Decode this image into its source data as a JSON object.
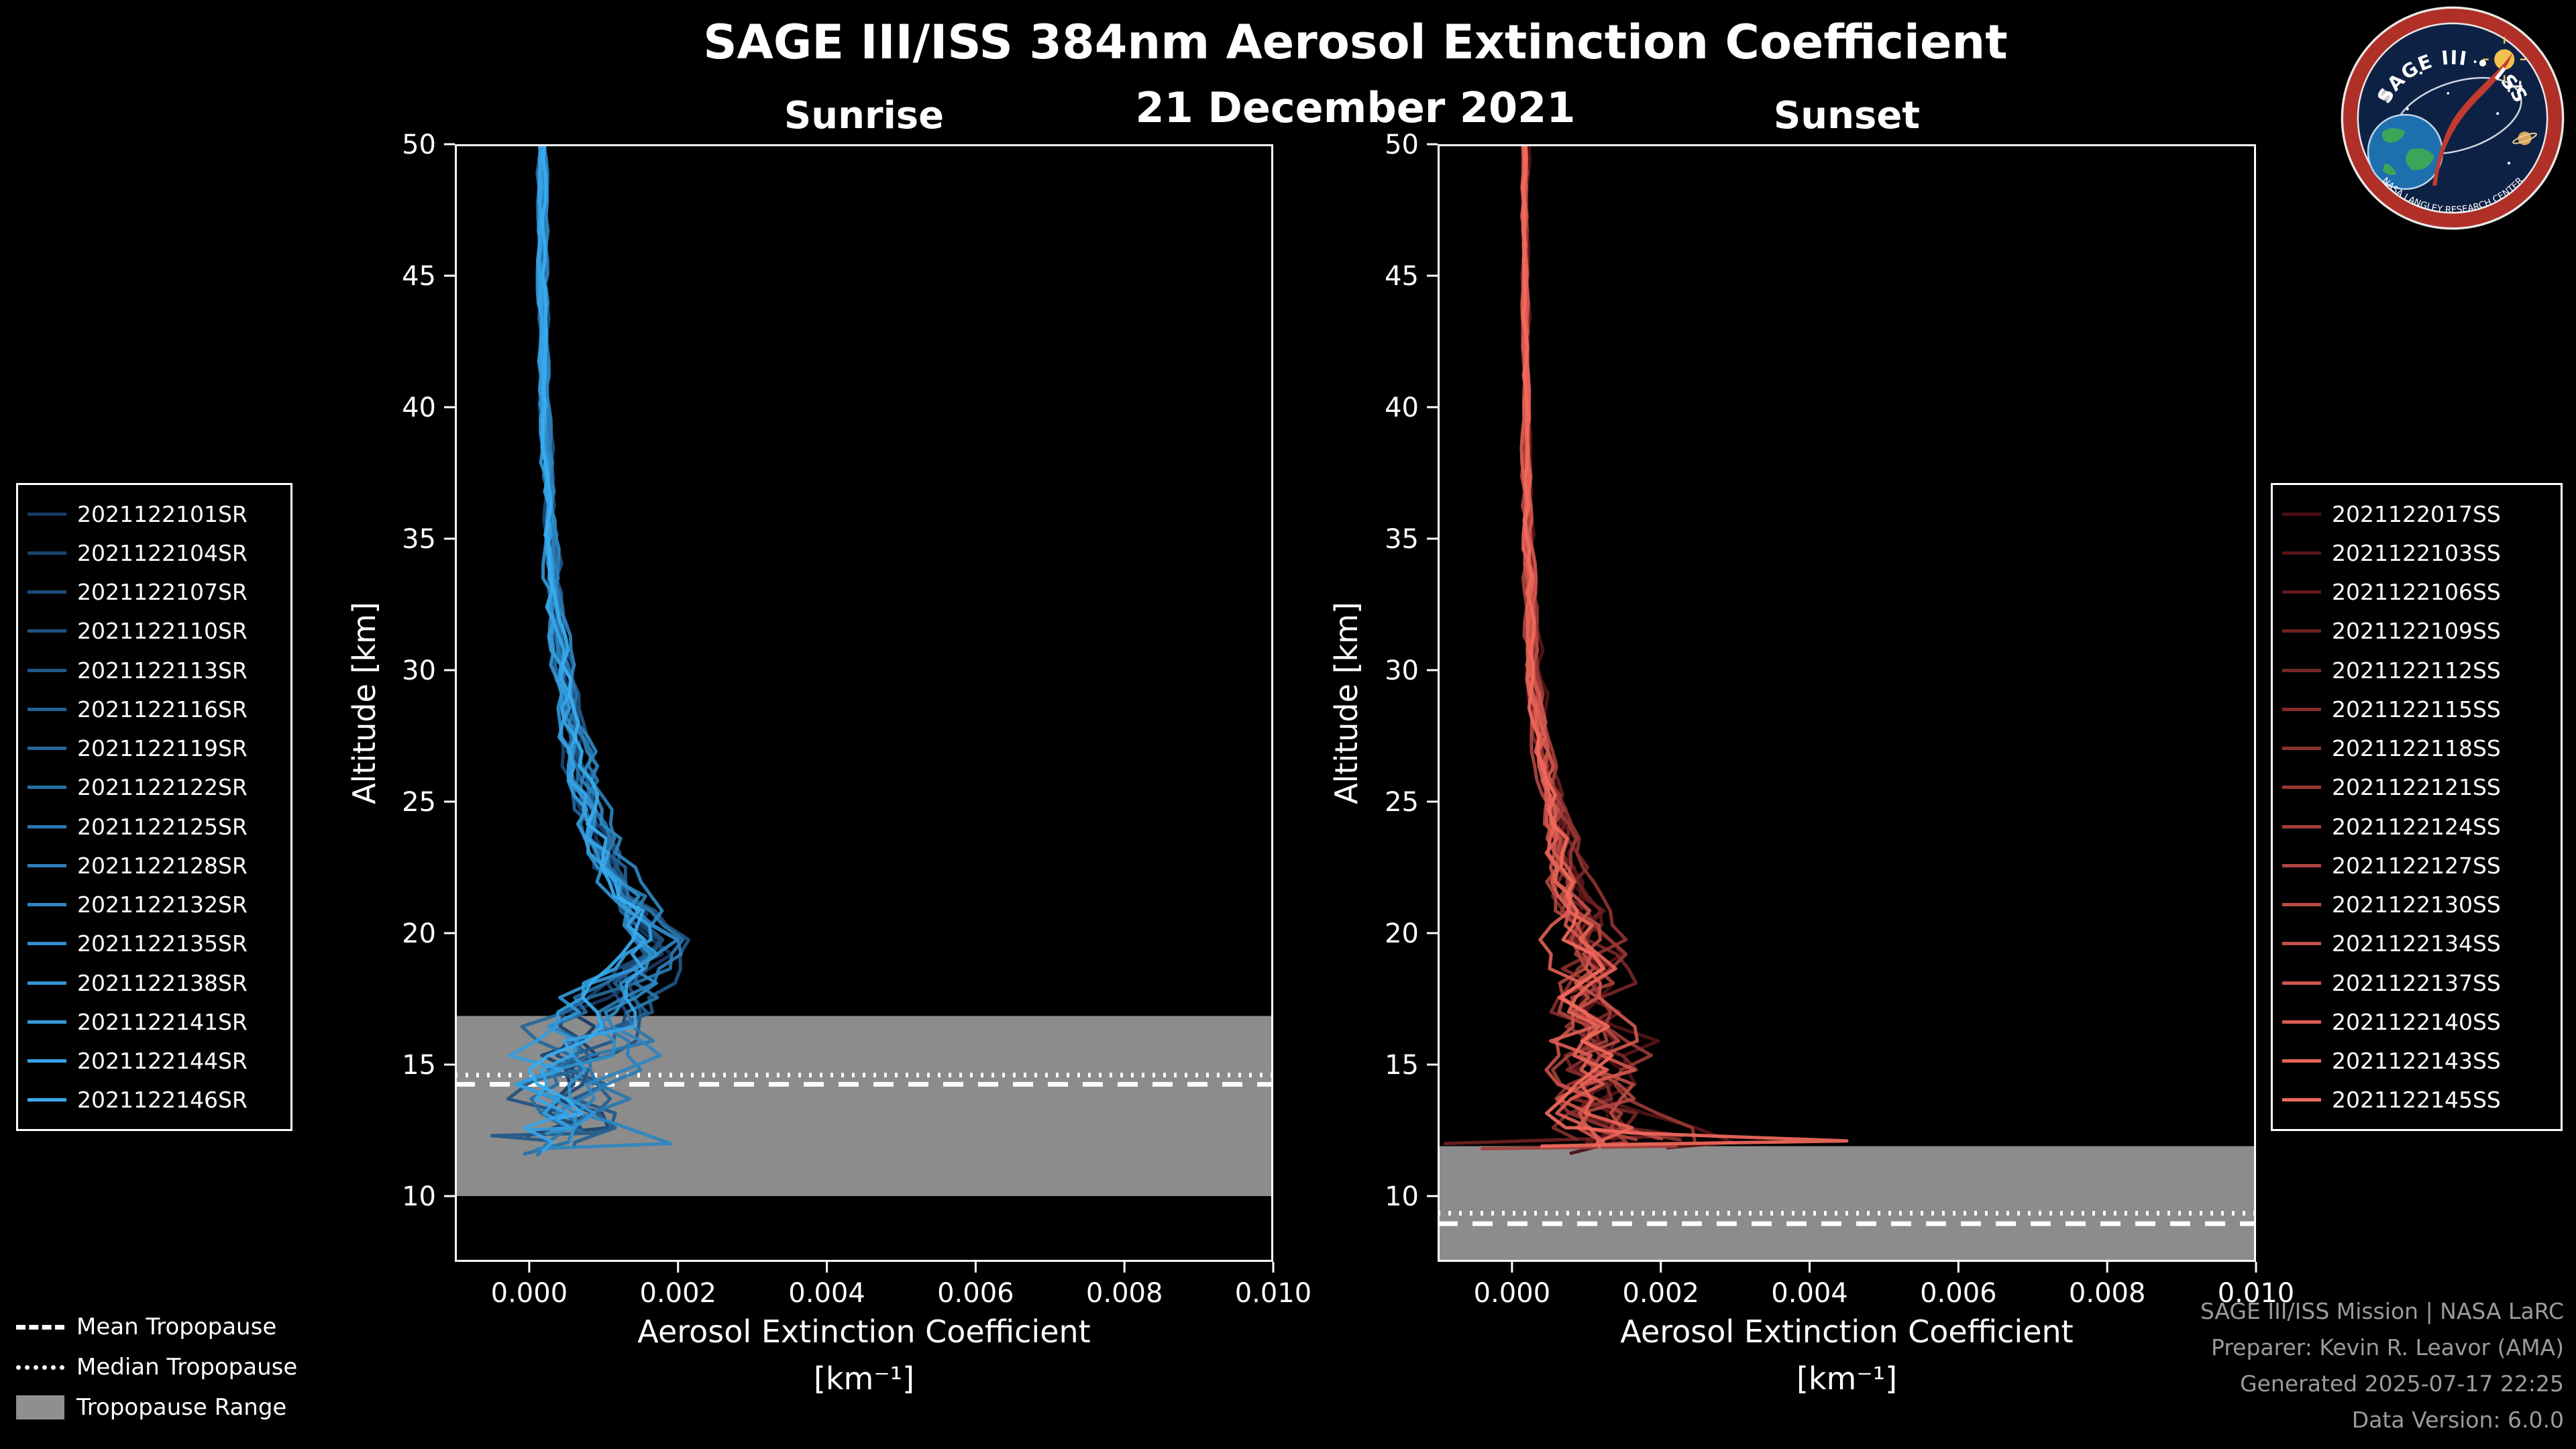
{
  "title": "SAGE III/ISS 384nm Aerosol Extinction Coefficient",
  "subtitle": "21 December 2021",
  "axes_labels": {
    "ylabel": "Altitude [km]",
    "xlabel": "Aerosol Extinction Coefficient",
    "xlabel_units": "[km⁻¹]"
  },
  "bottom_legend": [
    {
      "style": "bl-dashed",
      "label": "Mean Tropopause"
    },
    {
      "style": "bl-dotted",
      "label": "Median Tropopause"
    },
    {
      "style": "bl-patch",
      "label": "Tropopause Range"
    }
  ],
  "credits": [
    "SAGE III/ISS Mission | NASA LaRC",
    "Preparer: Kevin R. Leavor (AMA)",
    "Generated 2025-07-17 22:25",
    "Data Version: 6.0.0"
  ],
  "logo": {
    "arc_text": "SAGE III • ISS",
    "ring_text": "NASA LANGLEY RESEARCH CENTER"
  },
  "colors": {
    "background": "#000000",
    "foreground": "#ffffff",
    "tropopause_band": "#949494",
    "credits_text": "#9b9b9b"
  },
  "chart_data": {
    "type": "line",
    "title": "SAGE III/ISS 384nm Aerosol Extinction Coefficient",
    "subtitle": "21 December 2021",
    "xlabel": "Aerosol Extinction Coefficient [km⁻¹]",
    "ylabel": "Altitude [km]",
    "axes": {
      "xlim": [
        -0.001,
        0.01
      ],
      "ylim": [
        7.5,
        50
      ],
      "xticks": [
        0.0,
        0.002,
        0.004,
        0.006,
        0.008,
        0.01
      ],
      "xtick_labels": [
        "0.000",
        "0.002",
        "0.004",
        "0.006",
        "0.008",
        "0.010"
      ],
      "yticks": [
        10,
        15,
        20,
        25,
        30,
        35,
        40,
        45,
        50
      ],
      "ytick_labels": [
        "10",
        "15",
        "20",
        "25",
        "30",
        "35",
        "40",
        "45",
        "50"
      ],
      "grid": false
    },
    "panels": [
      {
        "id": "sunrise",
        "title": "Sunrise",
        "legend_position": "outside-left",
        "seed": 11,
        "tropopause": {
          "mean": 14.25,
          "median": 14.6,
          "range": [
            10.0,
            16.85
          ]
        },
        "base_profile": {
          "altitude": [
            50,
            45,
            40,
            35,
            32,
            30,
            28,
            26,
            24,
            22,
            21,
            20,
            19.5,
            19,
            18,
            17,
            16,
            15,
            14,
            13,
            12.5,
            12,
            11.5
          ],
          "extinction": [
            0.00018,
            0.00018,
            0.0002,
            0.00028,
            0.00035,
            0.00045,
            0.00055,
            0.0007,
            0.0009,
            0.0012,
            0.0014,
            0.0016,
            0.0017,
            0.0016,
            0.0013,
            0.001,
            0.0008,
            0.0006,
            0.0005,
            0.0006,
            0.0005,
            0.0003,
            0.0002
          ]
        },
        "noise_profile": {
          "altitude": [
            50,
            40,
            35,
            30,
            25,
            22,
            20,
            18,
            16,
            14,
            12,
            11.5
          ],
          "amplitude": [
            4e-05,
            4e-05,
            6e-05,
            0.0001,
            0.00015,
            0.0002,
            0.00025,
            0.0004,
            0.0006,
            0.0006,
            0.0005,
            0.0004
          ]
        },
        "end_altitude": [
          11.5,
          13.0
        ],
        "tails": [
          {
            "series": 4,
            "points": [
              [
                12.3,
                -0.0005
              ],
              [
                12.1,
                0.0003
              ]
            ]
          },
          {
            "series": 10,
            "points": [
              [
                12.0,
                0.0019
              ],
              [
                11.8,
                0.0001
              ]
            ]
          }
        ],
        "series": [
          {
            "label": "2021122101SR",
            "color": "#173A63"
          },
          {
            "label": "2021122104SR",
            "color": "#19426C"
          },
          {
            "label": "2021122107SR",
            "color": "#1B4976"
          },
          {
            "label": "2021122110SR",
            "color": "#1E517F"
          },
          {
            "label": "2021122113SR",
            "color": "#205889"
          },
          {
            "label": "2021122116SR",
            "color": "#226092"
          },
          {
            "label": "2021122119SR",
            "color": "#24689B"
          },
          {
            "label": "2021122122SR",
            "color": "#266FA5"
          },
          {
            "label": "2021122125SR",
            "color": "#2977AE"
          },
          {
            "label": "2021122128SR",
            "color": "#2B7EB8"
          },
          {
            "label": "2021122132SR",
            "color": "#2D86C1"
          },
          {
            "label": "2021122135SR",
            "color": "#2F8ECA"
          },
          {
            "label": "2021122138SR",
            "color": "#3195D4"
          },
          {
            "label": "2021122141SR",
            "color": "#349DDD"
          },
          {
            "label": "2021122144SR",
            "color": "#36A4E7"
          },
          {
            "label": "2021122146SR",
            "color": "#38ACF0"
          }
        ]
      },
      {
        "id": "sunset",
        "title": "Sunset",
        "legend_position": "outside-right",
        "seed": 77,
        "tropopause": {
          "mean": 8.95,
          "median": 9.35,
          "range": [
            7.5,
            11.9
          ]
        },
        "base_profile": {
          "altitude": [
            50,
            45,
            40,
            35,
            30,
            28,
            26,
            24,
            22,
            20,
            19,
            18,
            17,
            16,
            15,
            14,
            13,
            12.5,
            12.2,
            12,
            11.8
          ],
          "extinction": [
            0.00018,
            0.00018,
            0.0002,
            0.00022,
            0.0003,
            0.00038,
            0.0005,
            0.00065,
            0.0008,
            0.001,
            0.0011,
            0.0011,
            0.0011,
            0.0012,
            0.0012,
            0.0012,
            0.0013,
            0.0015,
            0.0018,
            0.0015,
            0.0008
          ]
        },
        "noise_profile": {
          "altitude": [
            50,
            40,
            35,
            30,
            25,
            22,
            20,
            18,
            16,
            14,
            13,
            12,
            11.8
          ],
          "amplitude": [
            3e-05,
            3e-05,
            5e-05,
            8e-05,
            0.00012,
            0.0002,
            0.0003,
            0.0004,
            0.0005,
            0.0006,
            0.0006,
            0.0007,
            0.0005
          ]
        },
        "end_altitude": [
          11.6,
          12.3
        ],
        "specials": [
          {
            "series": 15,
            "points": [
              [
                12.4,
                0.0016
              ],
              [
                12.1,
                0.0045
              ],
              [
                11.95,
                0.0012
              ],
              [
                11.9,
                0.0004
              ]
            ]
          }
        ],
        "tails": [
          {
            "series": 3,
            "points": [
              [
                12.0,
                -0.0009
              ]
            ]
          },
          {
            "series": 8,
            "points": [
              [
                11.9,
                0.0022
              ],
              [
                11.8,
                -0.0004
              ]
            ]
          }
        ],
        "series": [
          {
            "label": "2021122017SS",
            "color": "#4A0E12"
          },
          {
            "label": "2021122103SS",
            "color": "#551417"
          },
          {
            "label": "2021122106SS",
            "color": "#601A1C"
          },
          {
            "label": "2021122109SS",
            "color": "#6C2021"
          },
          {
            "label": "2021122112SS",
            "color": "#772626"
          },
          {
            "label": "2021122115SS",
            "color": "#822C2B"
          },
          {
            "label": "2021122118SS",
            "color": "#8D3230"
          },
          {
            "label": "2021122121SS",
            "color": "#983835"
          },
          {
            "label": "2021122124SS",
            "color": "#A43F39"
          },
          {
            "label": "2021122127SS",
            "color": "#AF453E"
          },
          {
            "label": "2021122130SS",
            "color": "#BA4B43"
          },
          {
            "label": "2021122134SS",
            "color": "#C55148"
          },
          {
            "label": "2021122137SS",
            "color": "#D0574D"
          },
          {
            "label": "2021122140SS",
            "color": "#DC5D52"
          },
          {
            "label": "2021122143SS",
            "color": "#E76357"
          },
          {
            "label": "2021122145SS",
            "color": "#F2695C"
          }
        ]
      }
    ]
  }
}
